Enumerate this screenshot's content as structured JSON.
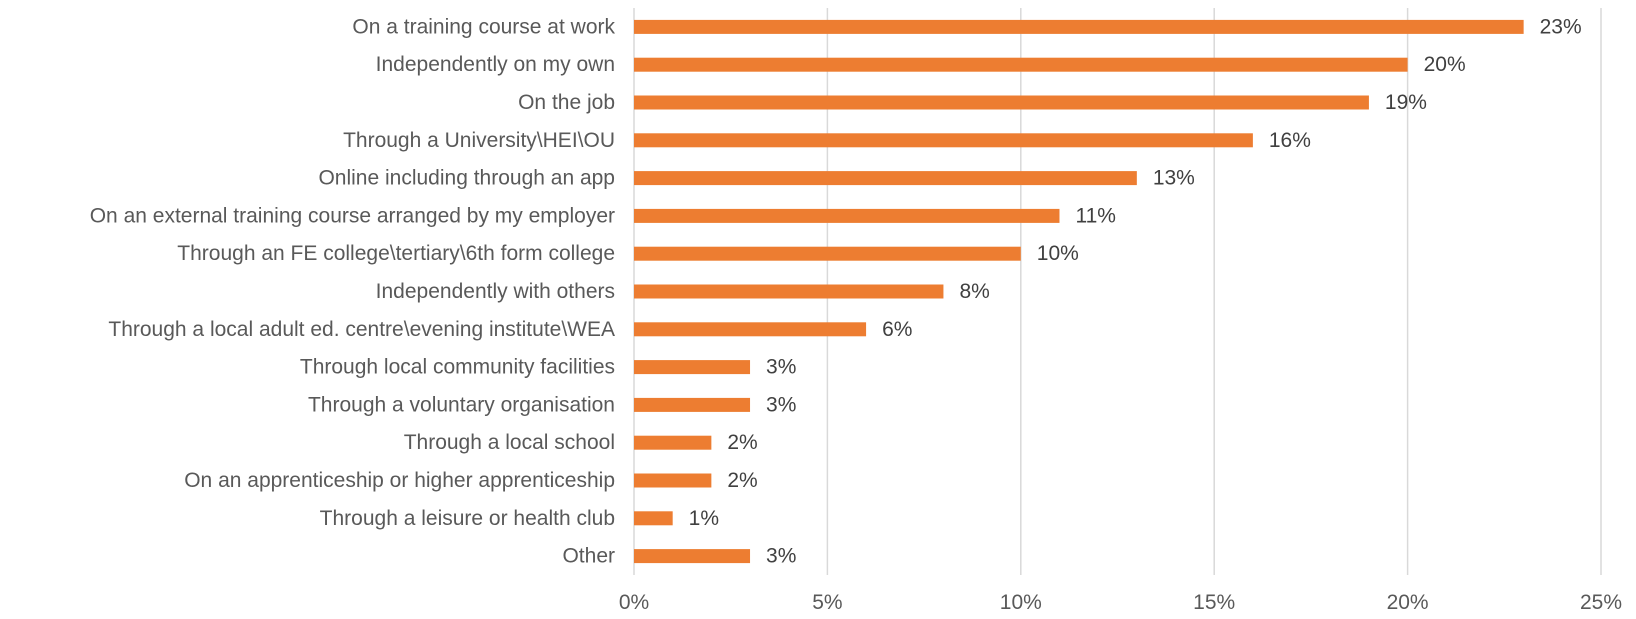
{
  "chart_data": {
    "type": "bar",
    "orientation": "horizontal",
    "categories": [
      "On a training course at work",
      "Independently on my own",
      "On the job",
      "Through a University\\HEI\\OU",
      "Online including through an app",
      "On an external training course arranged by my employer",
      "Through an FE college\\tertiary\\6th form college",
      "Independently with others",
      "Through a local adult ed. centre\\evening institute\\WEA",
      "Through local community facilities",
      "Through a voluntary organisation",
      "Through a local school",
      "On an apprenticeship or higher apprenticeship",
      "Through a leisure or health club",
      "Other"
    ],
    "values": [
      23,
      20,
      19,
      16,
      13,
      11,
      10,
      8,
      6,
      3,
      3,
      2,
      2,
      1,
      3
    ],
    "value_labels": [
      "23%",
      "20%",
      "19%",
      "16%",
      "13%",
      "11%",
      "10%",
      "8%",
      "6%",
      "3%",
      "3%",
      "2%",
      "2%",
      "1%",
      "3%"
    ],
    "xlim": [
      0,
      25
    ],
    "x_ticks": [
      0,
      5,
      10,
      15,
      20,
      25
    ],
    "x_tick_labels": [
      "0%",
      "5%",
      "10%",
      "15%",
      "20%",
      "25%"
    ],
    "grid": "vertical",
    "bar_color": "#ED7D31",
    "title": "",
    "xlabel": "",
    "ylabel": ""
  }
}
